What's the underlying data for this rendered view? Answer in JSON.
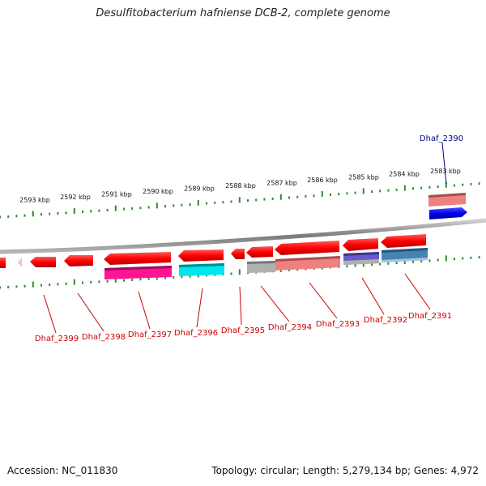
{
  "title": "Desulfitobacterium hafniense DCB-2, complete genome",
  "footer": {
    "accession": "Accession: NC_011830",
    "info": "Topology: circular; Length: 5,279,134 bp; Genes: 4,972"
  },
  "ruler_labels": [
    "2593 kbp",
    "2592 kbp",
    "2591 kbp",
    "2590 kbp",
    "2589 kbp",
    "2588 kbp",
    "2587 kbp",
    "2586 kbp",
    "2585 kbp",
    "2584 kbp",
    "2583 kbp"
  ],
  "gene_labels": [
    {
      "name": "Dhaf_2390",
      "color": "#00008b"
    },
    {
      "name": "Dhaf_2391",
      "color": "#cc0000"
    },
    {
      "name": "Dhaf_2392",
      "color": "#cc0000"
    },
    {
      "name": "Dhaf_2393",
      "color": "#cc0000"
    },
    {
      "name": "Dhaf_2394",
      "color": "#cc0000"
    },
    {
      "name": "Dhaf_2395",
      "color": "#cc0000"
    },
    {
      "name": "Dhaf_2396",
      "color": "#cc0000"
    },
    {
      "name": "Dhaf_2397",
      "color": "#cc0000"
    },
    {
      "name": "Dhaf_2398",
      "color": "#cc0000"
    },
    {
      "name": "Dhaf_2399",
      "color": "#cc0000"
    }
  ],
  "colors": {
    "backbone": "#808080",
    "ruler_ticks": "#2e8b2e",
    "gene_red": "#ff0000",
    "gene_blue": "#0000ee",
    "cog_salmon": "#f08080",
    "cog_magenta": "#ff1493",
    "cog_cyan": "#00e5ee",
    "cog_gray": "#b0b0b0",
    "cog_purple": "#6a5acd",
    "cog_steelblue": "#4682b4"
  }
}
